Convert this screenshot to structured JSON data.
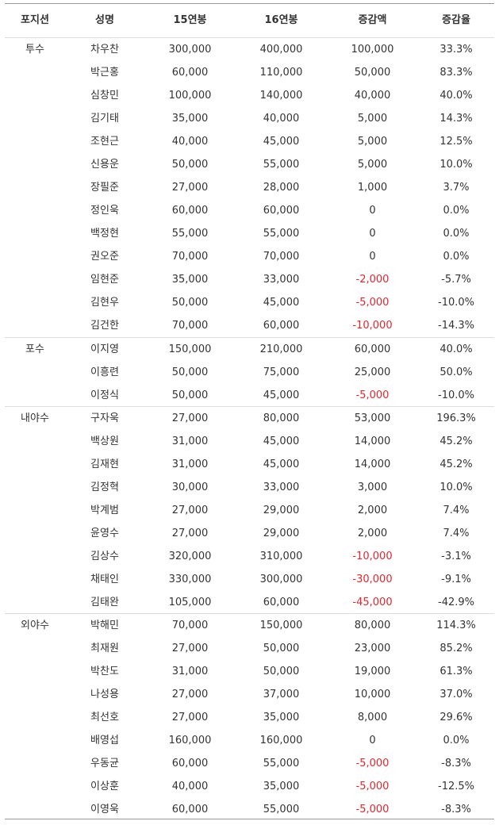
{
  "headers": [
    "포지션",
    "성명",
    "15연봉",
    "16연봉",
    "증감액",
    "증감율"
  ],
  "colors": {
    "negative": "#e8242c",
    "text": "#333333",
    "rule": "#999999",
    "divider": "#dddddd"
  },
  "groups": [
    {
      "position": "투수",
      "rows": [
        [
          "차우찬",
          "300,000",
          "400,000",
          "100,000",
          "33.3%"
        ],
        [
          "박근홍",
          "60,000",
          "110,000",
          "50,000",
          "83.3%"
        ],
        [
          "심창민",
          "100,000",
          "140,000",
          "40,000",
          "40.0%"
        ],
        [
          "김기태",
          "35,000",
          "40,000",
          "5,000",
          "14.3%"
        ],
        [
          "조현근",
          "40,000",
          "45,000",
          "5,000",
          "12.5%"
        ],
        [
          "신용운",
          "50,000",
          "55,000",
          "5,000",
          "10.0%"
        ],
        [
          "장필준",
          "27,000",
          "28,000",
          "1,000",
          "3.7%"
        ],
        [
          "정인욱",
          "60,000",
          "60,000",
          "0",
          "0.0%"
        ],
        [
          "백정현",
          "55,000",
          "55,000",
          "0",
          "0.0%"
        ],
        [
          "권오준",
          "70,000",
          "70,000",
          "0",
          "0.0%"
        ],
        [
          "임현준",
          "35,000",
          "33,000",
          "-2,000",
          "-5.7%"
        ],
        [
          "김현우",
          "50,000",
          "45,000",
          "-5,000",
          "-10.0%"
        ],
        [
          "김건한",
          "70,000",
          "60,000",
          "-10,000",
          "-14.3%"
        ]
      ]
    },
    {
      "position": "포수",
      "rows": [
        [
          "이지영",
          "150,000",
          "210,000",
          "60,000",
          "40.0%"
        ],
        [
          "이흥련",
          "50,000",
          "75,000",
          "25,000",
          "50.0%"
        ],
        [
          "이정식",
          "50,000",
          "45,000",
          "-5,000",
          "-10.0%"
        ]
      ]
    },
    {
      "position": "내야수",
      "rows": [
        [
          "구자욱",
          "27,000",
          "80,000",
          "53,000",
          "196.3%"
        ],
        [
          "백상원",
          "31,000",
          "45,000",
          "14,000",
          "45.2%"
        ],
        [
          "김재현",
          "31,000",
          "45,000",
          "14,000",
          "45.2%"
        ],
        [
          "김정혁",
          "30,000",
          "33,000",
          "3,000",
          "10.0%"
        ],
        [
          "박계범",
          "27,000",
          "29,000",
          "2,000",
          "7.4%"
        ],
        [
          "윤영수",
          "27,000",
          "29,000",
          "2,000",
          "7.4%"
        ],
        [
          "김상수",
          "320,000",
          "310,000",
          "-10,000",
          "-3.1%"
        ],
        [
          "채태인",
          "330,000",
          "300,000",
          "-30,000",
          "-9.1%"
        ],
        [
          "김태완",
          "105,000",
          "60,000",
          "-45,000",
          "-42.9%"
        ]
      ]
    },
    {
      "position": "외야수",
      "rows": [
        [
          "박해민",
          "70,000",
          "150,000",
          "80,000",
          "114.3%"
        ],
        [
          "최재원",
          "27,000",
          "50,000",
          "23,000",
          "85.2%"
        ],
        [
          "박찬도",
          "31,000",
          "50,000",
          "19,000",
          "61.3%"
        ],
        [
          "나성용",
          "27,000",
          "37,000",
          "10,000",
          "37.0%"
        ],
        [
          "최선호",
          "27,000",
          "35,000",
          "8,000",
          "29.6%"
        ],
        [
          "배영섭",
          "160,000",
          "160,000",
          "0",
          "0.0%"
        ],
        [
          "우동균",
          "60,000",
          "55,000",
          "-5,000",
          "-8.3%"
        ],
        [
          "이상훈",
          "40,000",
          "35,000",
          "-5,000",
          "-12.5%"
        ],
        [
          "이영욱",
          "60,000",
          "55,000",
          "-5,000",
          "-8.3%"
        ]
      ]
    }
  ]
}
